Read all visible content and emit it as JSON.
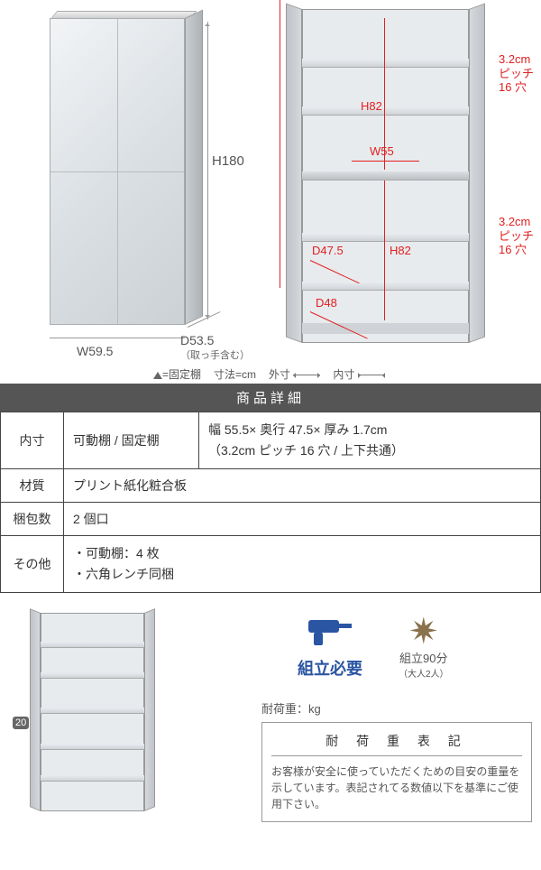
{
  "closed": {
    "h": "H180",
    "w": "W59.5",
    "d": "D53.5",
    "d_note": "（取っ手含む）"
  },
  "open": {
    "h82": "H82",
    "w55": "W55",
    "d475": "D47.5",
    "d48": "D48",
    "pitch_line1": "3.2cm",
    "pitch_line2": "ピッチ",
    "pitch_line3": "16 穴"
  },
  "legend": {
    "fixedShelf": "=固定棚",
    "unit": "寸法=cm",
    "outer": "外寸",
    "inner": "内寸"
  },
  "specHeader": "商品詳細",
  "specs": [
    {
      "head": "内寸",
      "sub": "可動棚 / 固定棚",
      "val": "幅 55.5× 奥行 47.5× 厚み 1.7cm\n（3.2cm ピッチ 16 穴 / 上下共通）"
    },
    {
      "head": "材質",
      "val": "プリント紙化粧合板"
    },
    {
      "head": "梱包数",
      "val": "2 個口"
    },
    {
      "head": "その他",
      "val": "・可動棚：4 枚\n・六角レンチ同梱"
    }
  ],
  "mini": {
    "weight": "20"
  },
  "assembly": {
    "required": "組立必要",
    "time": "組立90分",
    "time_sub": "（大人2人）",
    "capacity_label": "耐荷重：kg",
    "cap_title": "耐 荷 重 表 記",
    "cap_body": "お客様が安全に使っていただくための目安の重量を示しています。表記されてる数値以下を基準にご使用下さい。"
  }
}
